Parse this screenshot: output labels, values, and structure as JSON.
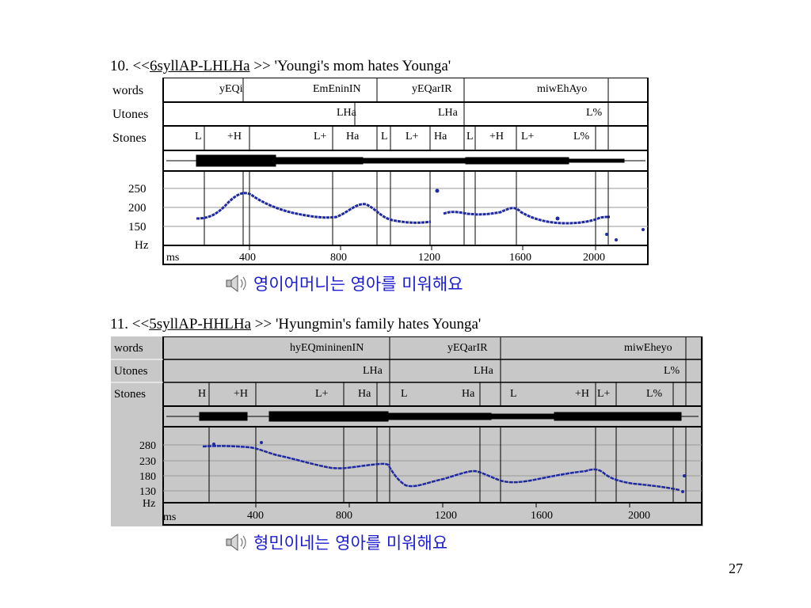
{
  "page_number": "27",
  "colors": {
    "pitch": "#1f2aa0",
    "korean_text": "#1b1bcf",
    "panel_bg": "#c8c8c8"
  },
  "figures": [
    {
      "caption": {
        "number": "10.",
        "pre": "<<",
        "link": "6syllAP-LHLHa",
        "post": ">> 'Youngi's mom hates Younga'"
      },
      "tier_labels": [
        "words",
        "Utones",
        "Stones"
      ],
      "words": [
        "yEQi",
        "EmEninIN",
        "yEQarIR",
        "miwEhAyo"
      ],
      "utones": [
        "LHa",
        "LHa",
        "L%"
      ],
      "stones": [
        "L",
        "+H",
        "L+",
        "Ha",
        "L",
        "L+",
        "Ha",
        "L",
        "+H",
        "L+",
        "L%"
      ],
      "y_ticks": [
        "250",
        "200",
        "150"
      ],
      "y_unit": "Hz",
      "x_unit": "ms",
      "x_ticks": [
        "400",
        "800",
        "1200",
        "1600",
        "2000"
      ],
      "sound_icon": "speaker-icon",
      "korean": "영이어머니는 영아를 미워해요"
    },
    {
      "caption": {
        "number": "11.",
        "pre": "<<",
        "link": "5syllAP-HHLHa",
        "post": ">> 'Hyungmin's family hates Younga'"
      },
      "tier_labels": [
        "words",
        "Utones",
        "Stones"
      ],
      "words": [
        "hyEQmininenIN",
        "yEQarIR",
        "miwEheyo"
      ],
      "utones": [
        "LHa",
        "LHa",
        "L%"
      ],
      "stones": [
        "H",
        "+H",
        "L+",
        "Ha",
        "L",
        "Ha",
        "L",
        "+H",
        "L+",
        "L%"
      ],
      "y_ticks": [
        "280",
        "230",
        "180",
        "130"
      ],
      "y_unit": "Hz",
      "x_unit": "ms",
      "x_ticks": [
        "400",
        "800",
        "1200",
        "1600",
        "2000"
      ],
      "sound_icon": "speaker-icon",
      "korean": "형민이네는 영아를 미워해요"
    }
  ]
}
